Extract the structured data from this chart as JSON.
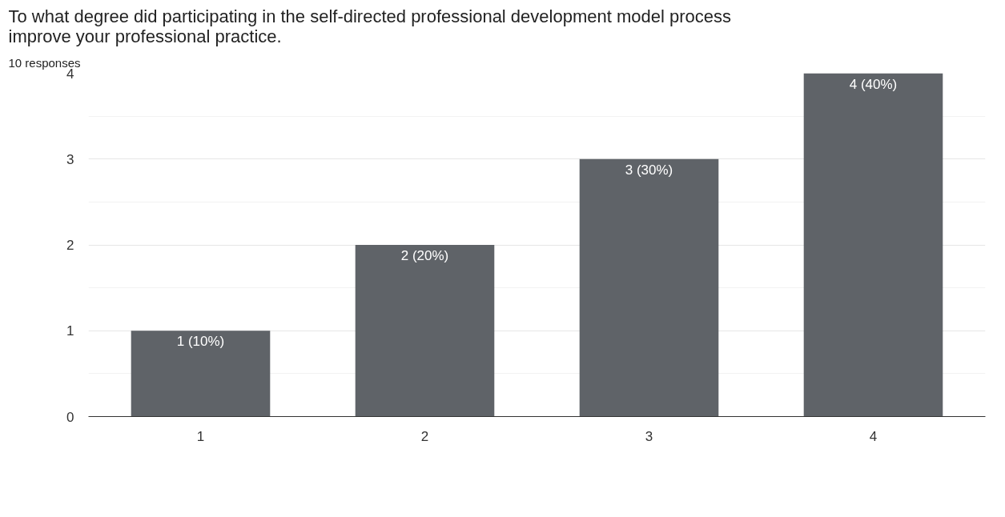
{
  "chart_data": {
    "type": "bar",
    "title": "To what degree did participating in the self-directed professional development model process improve your professional practice.",
    "subtitle": "10 responses",
    "categories": [
      "1",
      "2",
      "3",
      "4"
    ],
    "values": [
      1,
      2,
      3,
      4
    ],
    "value_labels": [
      "1 (10%)",
      "2 (20%)",
      "3 (30%)",
      "4 (40%)"
    ],
    "color": "#5f6368",
    "ylim": [
      0,
      4
    ],
    "yticks": [
      0,
      1,
      2,
      3,
      4
    ],
    "grid": "y"
  }
}
